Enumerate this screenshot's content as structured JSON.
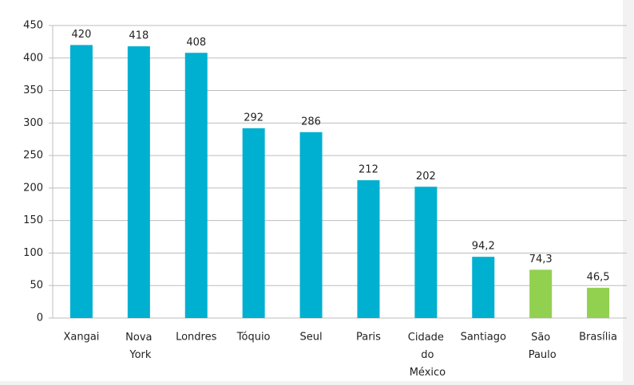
{
  "chart_data": {
    "type": "bar",
    "categories": [
      "Xangai",
      "Nova York",
      "Londres",
      "Tóquio",
      "Seul",
      "Paris",
      "Cidade do México",
      "Santiago",
      "São Paulo",
      "Brasília"
    ],
    "values": [
      420,
      418,
      408,
      292,
      286,
      212,
      202,
      94.2,
      74.3,
      46.5
    ],
    "value_labels": [
      "420",
      "418",
      "408",
      "292",
      "286",
      "212",
      "202",
      "94,2",
      "74,3",
      "46,5"
    ],
    "colors": [
      "#00b0d0",
      "#00b0d0",
      "#00b0d0",
      "#00b0d0",
      "#00b0d0",
      "#00b0d0",
      "#00b0d0",
      "#00b0d0",
      "#92d050",
      "#92d050"
    ],
    "ylim": [
      0,
      450
    ],
    "yticks": [
      0,
      50,
      100,
      150,
      200,
      250,
      300,
      350,
      400,
      450
    ],
    "grid": true
  }
}
